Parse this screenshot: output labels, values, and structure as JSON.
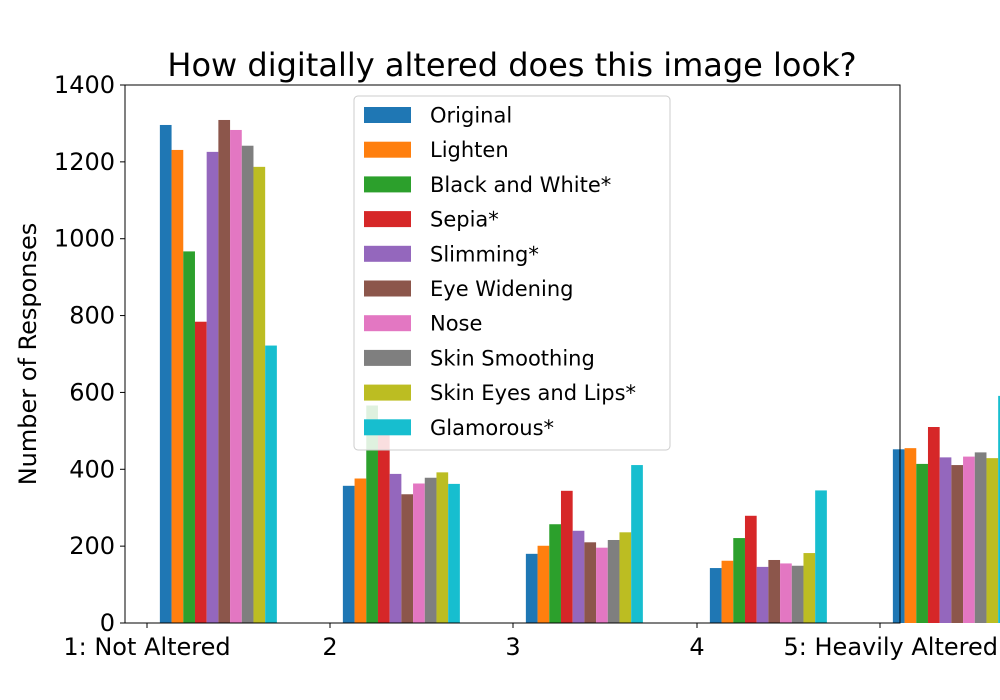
{
  "chart_data": {
    "type": "bar",
    "title": "How digitally altered does this image look?",
    "xlabel": "",
    "ylabel": "Number of Responses",
    "ylim": [
      0,
      1400
    ],
    "yticks": [
      "0",
      "200",
      "400",
      "600",
      "800",
      "1000",
      "1200",
      "1400"
    ],
    "categories": [
      "1: Not Altered",
      "2",
      "3",
      "4",
      "5: Heavily Altered"
    ],
    "legend_position": "top-center",
    "grid": false,
    "series": [
      {
        "name": "Original",
        "color": "#1f77b4",
        "values": [
          1296,
          357,
          180,
          143,
          452
        ]
      },
      {
        "name": "Lighten",
        "color": "#ff7f0e",
        "values": [
          1231,
          376,
          201,
          162,
          455
        ]
      },
      {
        "name": "Black and White*",
        "color": "#2ca02c",
        "values": [
          967,
          566,
          257,
          221,
          414
        ]
      },
      {
        "name": "Sepia*",
        "color": "#d62728",
        "values": [
          784,
          513,
          344,
          279,
          510
        ]
      },
      {
        "name": "Slimming*",
        "color": "#9467bd",
        "values": [
          1226,
          388,
          240,
          146,
          431
        ]
      },
      {
        "name": "Eye Widening",
        "color": "#8c564b",
        "values": [
          1309,
          335,
          210,
          164,
          411
        ]
      },
      {
        "name": "Nose",
        "color": "#e377c2",
        "values": [
          1283,
          363,
          196,
          155,
          433
        ]
      },
      {
        "name": "Skin Smoothing",
        "color": "#7f7f7f",
        "values": [
          1242,
          378,
          216,
          149,
          444
        ]
      },
      {
        "name": "Skin Eyes and Lips*",
        "color": "#bcbd22",
        "values": [
          1187,
          392,
          236,
          182,
          429
        ]
      },
      {
        "name": "Glamorous*",
        "color": "#17becf",
        "values": [
          722,
          362,
          411,
          345,
          591
        ]
      }
    ]
  }
}
